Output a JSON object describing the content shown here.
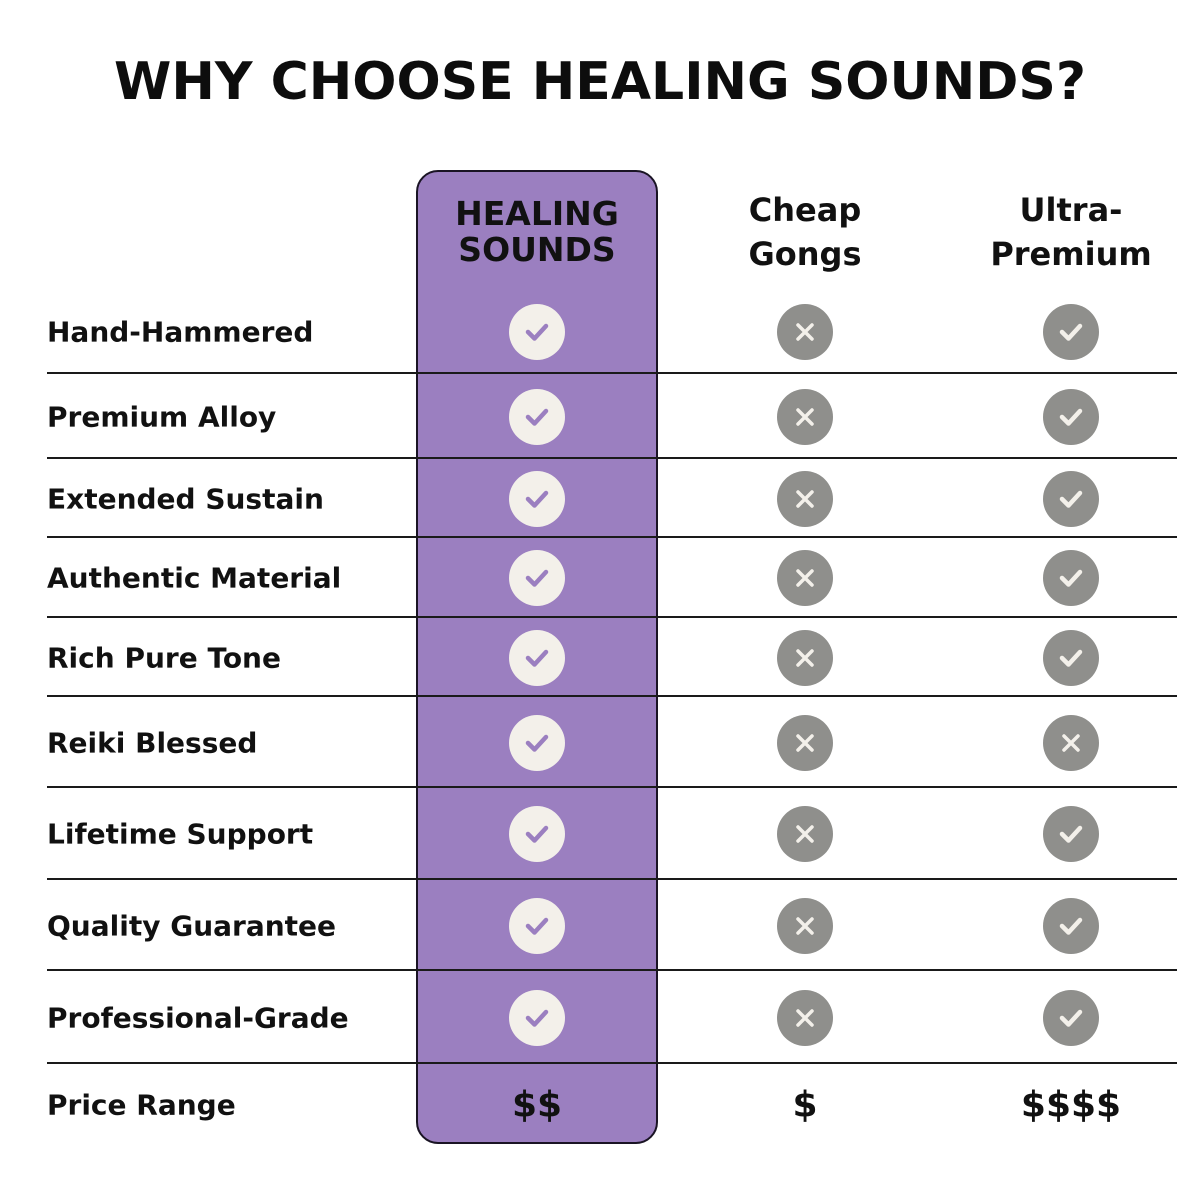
{
  "title": "WHY CHOOSE HEALING SOUNDS?",
  "columns": [
    {
      "label_line1": "HEALING",
      "label_line2": "SOUNDS"
    },
    {
      "label_line1": "Cheap",
      "label_line2": "Gongs"
    },
    {
      "label_line1": "Ultra-",
      "label_line2": "Premium"
    }
  ],
  "colors": {
    "highlight": "#9b7fc0",
    "icon_light": "#f3f0ea",
    "icon_gray": "#8f8f8c",
    "check_purple": "#9b7fc0"
  },
  "rows": [
    {
      "feature": "Hand-Hammered",
      "values": [
        "check",
        "cross",
        "check"
      ]
    },
    {
      "feature": "Premium Alloy",
      "values": [
        "check",
        "cross",
        "check"
      ]
    },
    {
      "feature": "Extended Sustain",
      "values": [
        "check",
        "cross",
        "check"
      ]
    },
    {
      "feature": "Authentic Material",
      "values": [
        "check",
        "cross",
        "check"
      ]
    },
    {
      "feature": "Rich Pure Tone",
      "values": [
        "check",
        "cross",
        "check"
      ]
    },
    {
      "feature": "Reiki Blessed",
      "values": [
        "check",
        "cross",
        "cross"
      ]
    },
    {
      "feature": "Lifetime Support",
      "values": [
        "check",
        "cross",
        "check"
      ]
    },
    {
      "feature": "Quality Guarantee",
      "values": [
        "check",
        "cross",
        "check"
      ]
    },
    {
      "feature": "Professional-Grade",
      "values": [
        "check",
        "cross",
        "check"
      ]
    }
  ],
  "price_row": {
    "feature": "Price Range",
    "values": [
      "$$",
      "$",
      "$$$$"
    ]
  }
}
